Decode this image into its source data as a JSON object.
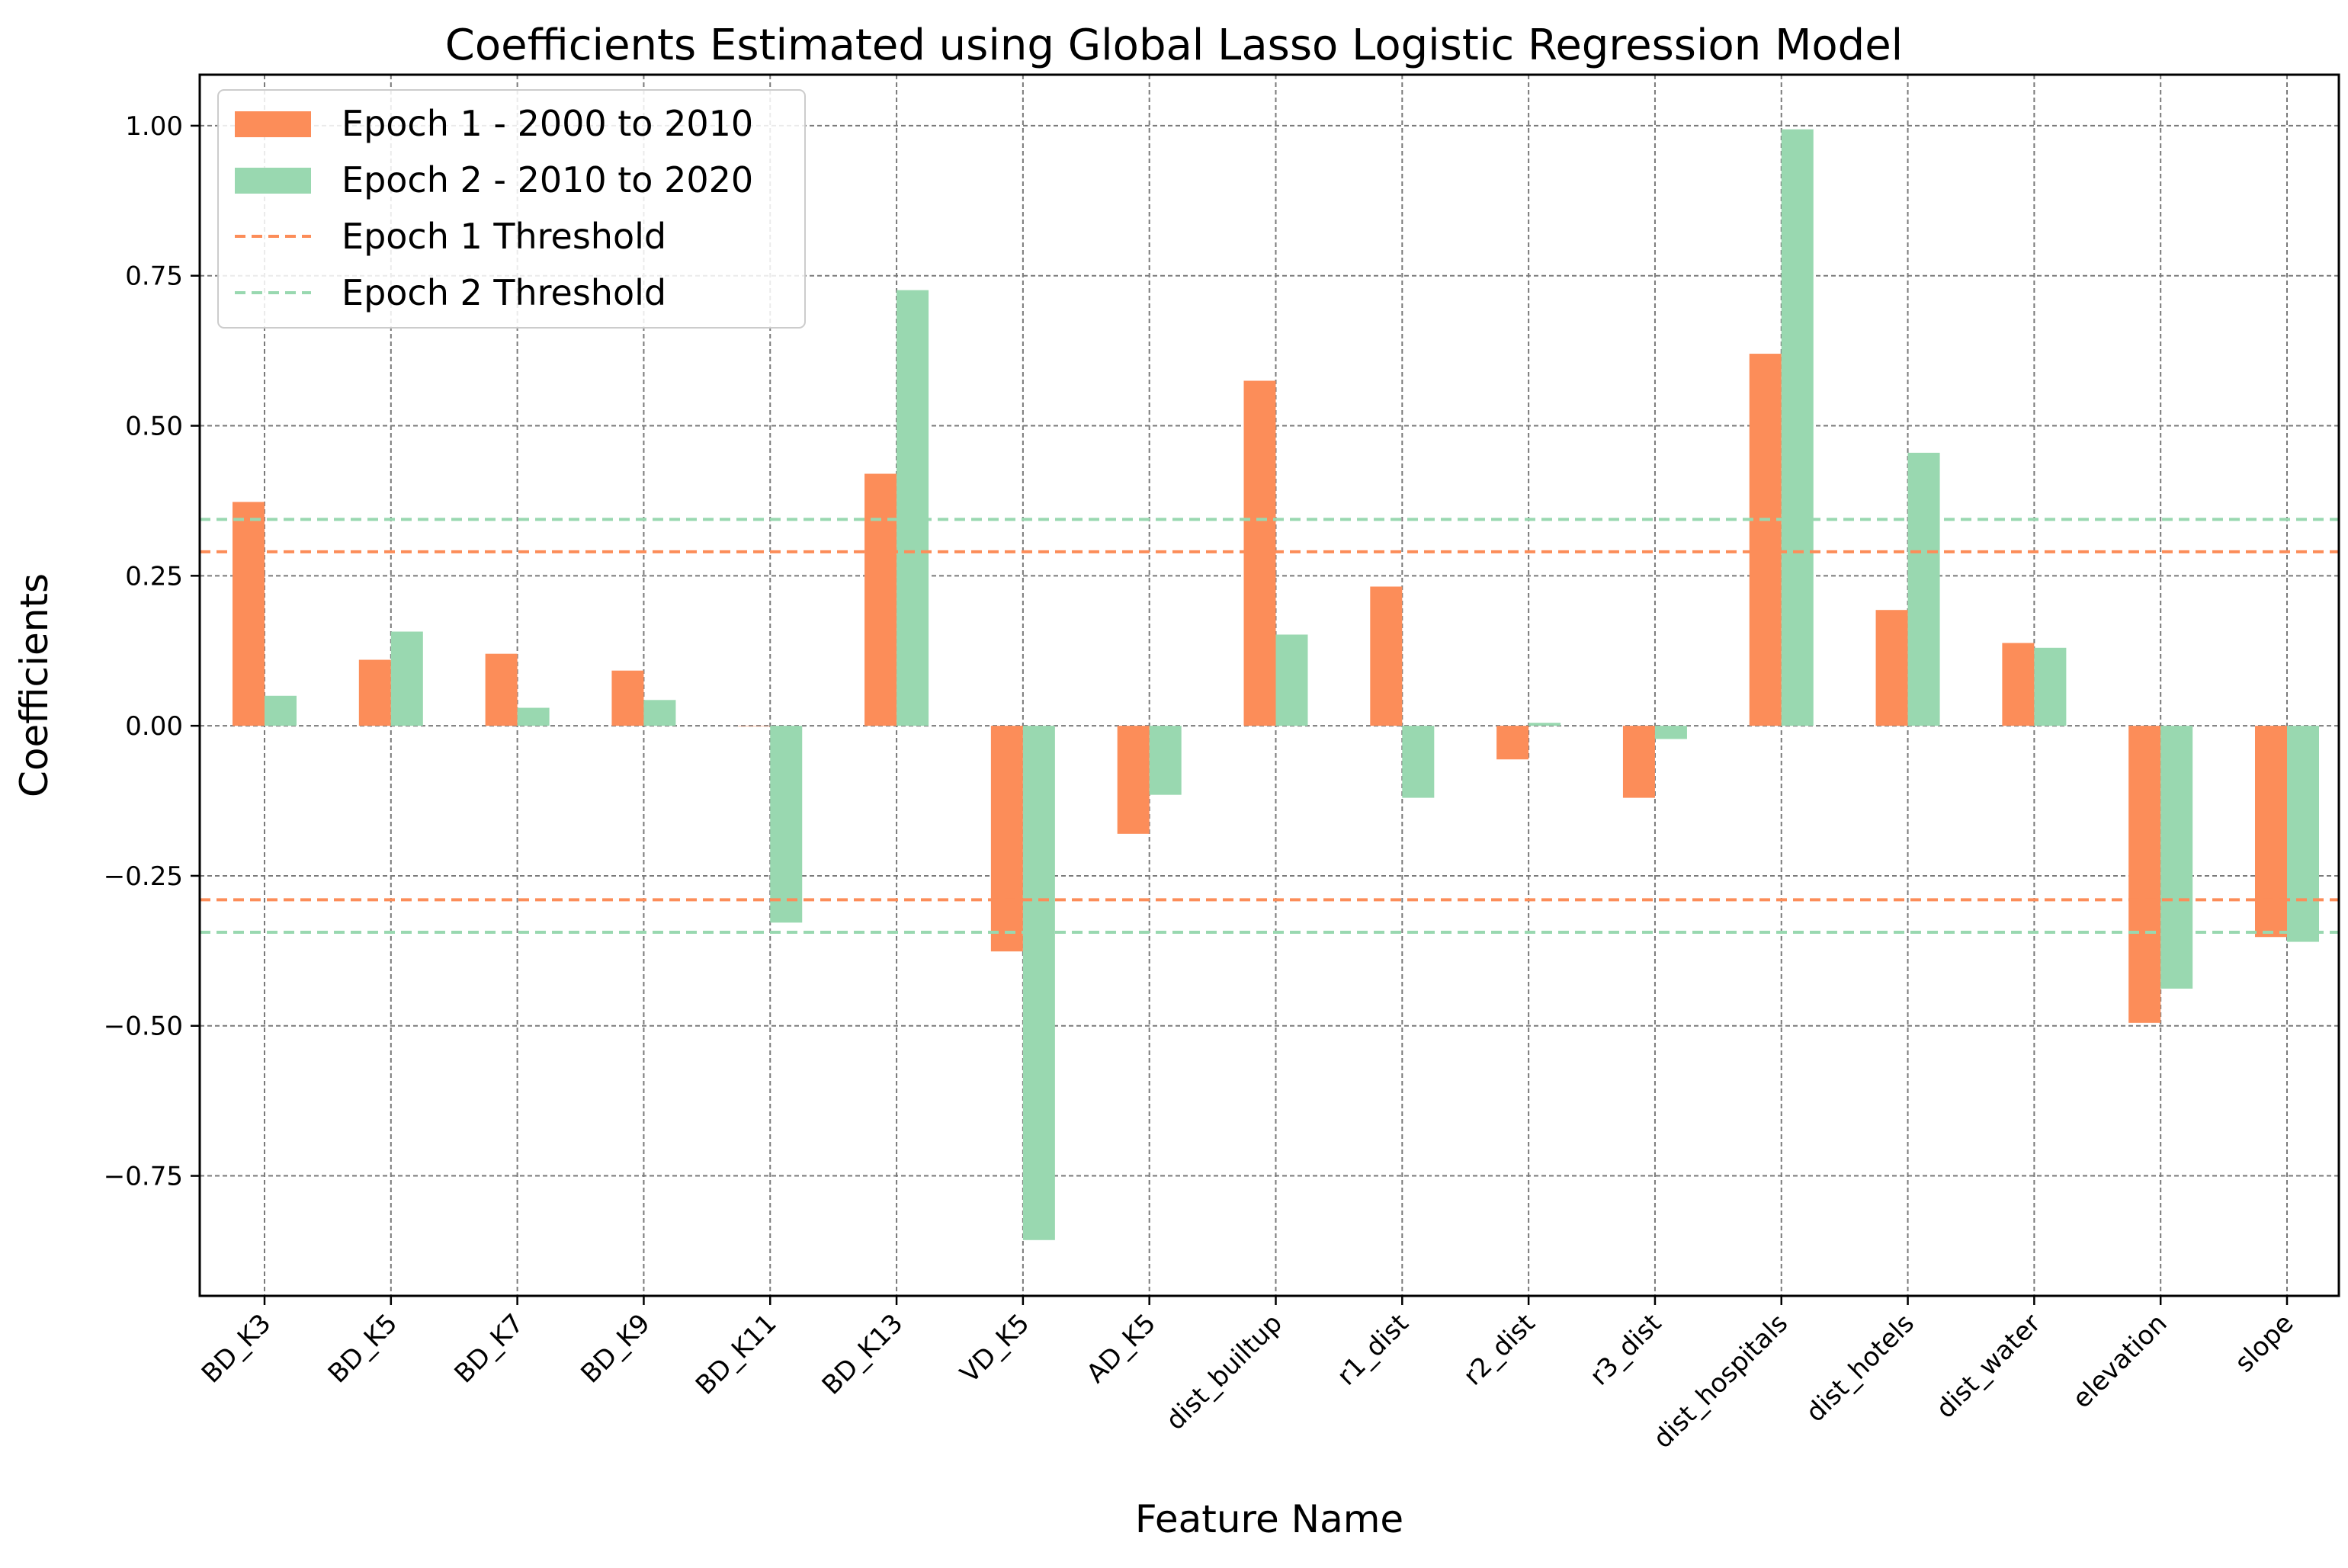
{
  "chart_data": {
    "type": "bar",
    "title": "Coefficients Estimated using Global Lasso Logistic Regression Model",
    "xlabel": "Feature Name",
    "ylabel": "Coefficients",
    "categories": [
      "BD_K3",
      "BD_K5",
      "BD_K7",
      "BD_K9",
      "BD_K11",
      "BD_K13",
      "VD_K5",
      "AD_K5",
      "dist_builtup",
      "r1_dist",
      "r2_dist",
      "r3_dist",
      "dist_hospitals",
      "dist_hotels",
      "dist_water",
      "elevation",
      "slope"
    ],
    "series": [
      {
        "name": "Epoch 1 - 2000 to 2010",
        "color": "#fc8d59",
        "values": [
          0.373,
          0.11,
          0.12,
          0.092,
          0.0,
          0.42,
          -0.376,
          -0.18,
          0.575,
          0.232,
          -0.056,
          -0.12,
          0.62,
          0.193,
          0.138,
          -0.495,
          -0.352
        ]
      },
      {
        "name": "Epoch 2 - 2010 to 2020",
        "color": "#99d8b0",
        "values": [
          0.05,
          0.157,
          0.03,
          0.043,
          -0.328,
          0.726,
          -0.857,
          -0.115,
          0.152,
          -0.12,
          0.005,
          -0.022,
          0.994,
          0.455,
          0.13,
          -0.438,
          -0.36
        ]
      }
    ],
    "thresholds": [
      {
        "name": "Epoch 1 Threshold",
        "color": "#fc8d59",
        "value": 0.29
      },
      {
        "name": "Epoch 2 Threshold",
        "color": "#99d8b0",
        "value": 0.344
      }
    ],
    "yticks": [
      -0.75,
      -0.5,
      -0.25,
      0.0,
      0.25,
      0.5,
      0.75,
      1.0
    ],
    "ytick_labels": [
      "−0.75",
      "−0.50",
      "−0.25",
      "0.00",
      "0.25",
      "0.50",
      "0.75",
      "1.00"
    ],
    "ylim": [
      -0.95,
      1.085
    ],
    "grid": true,
    "legend_position": "top-left"
  }
}
